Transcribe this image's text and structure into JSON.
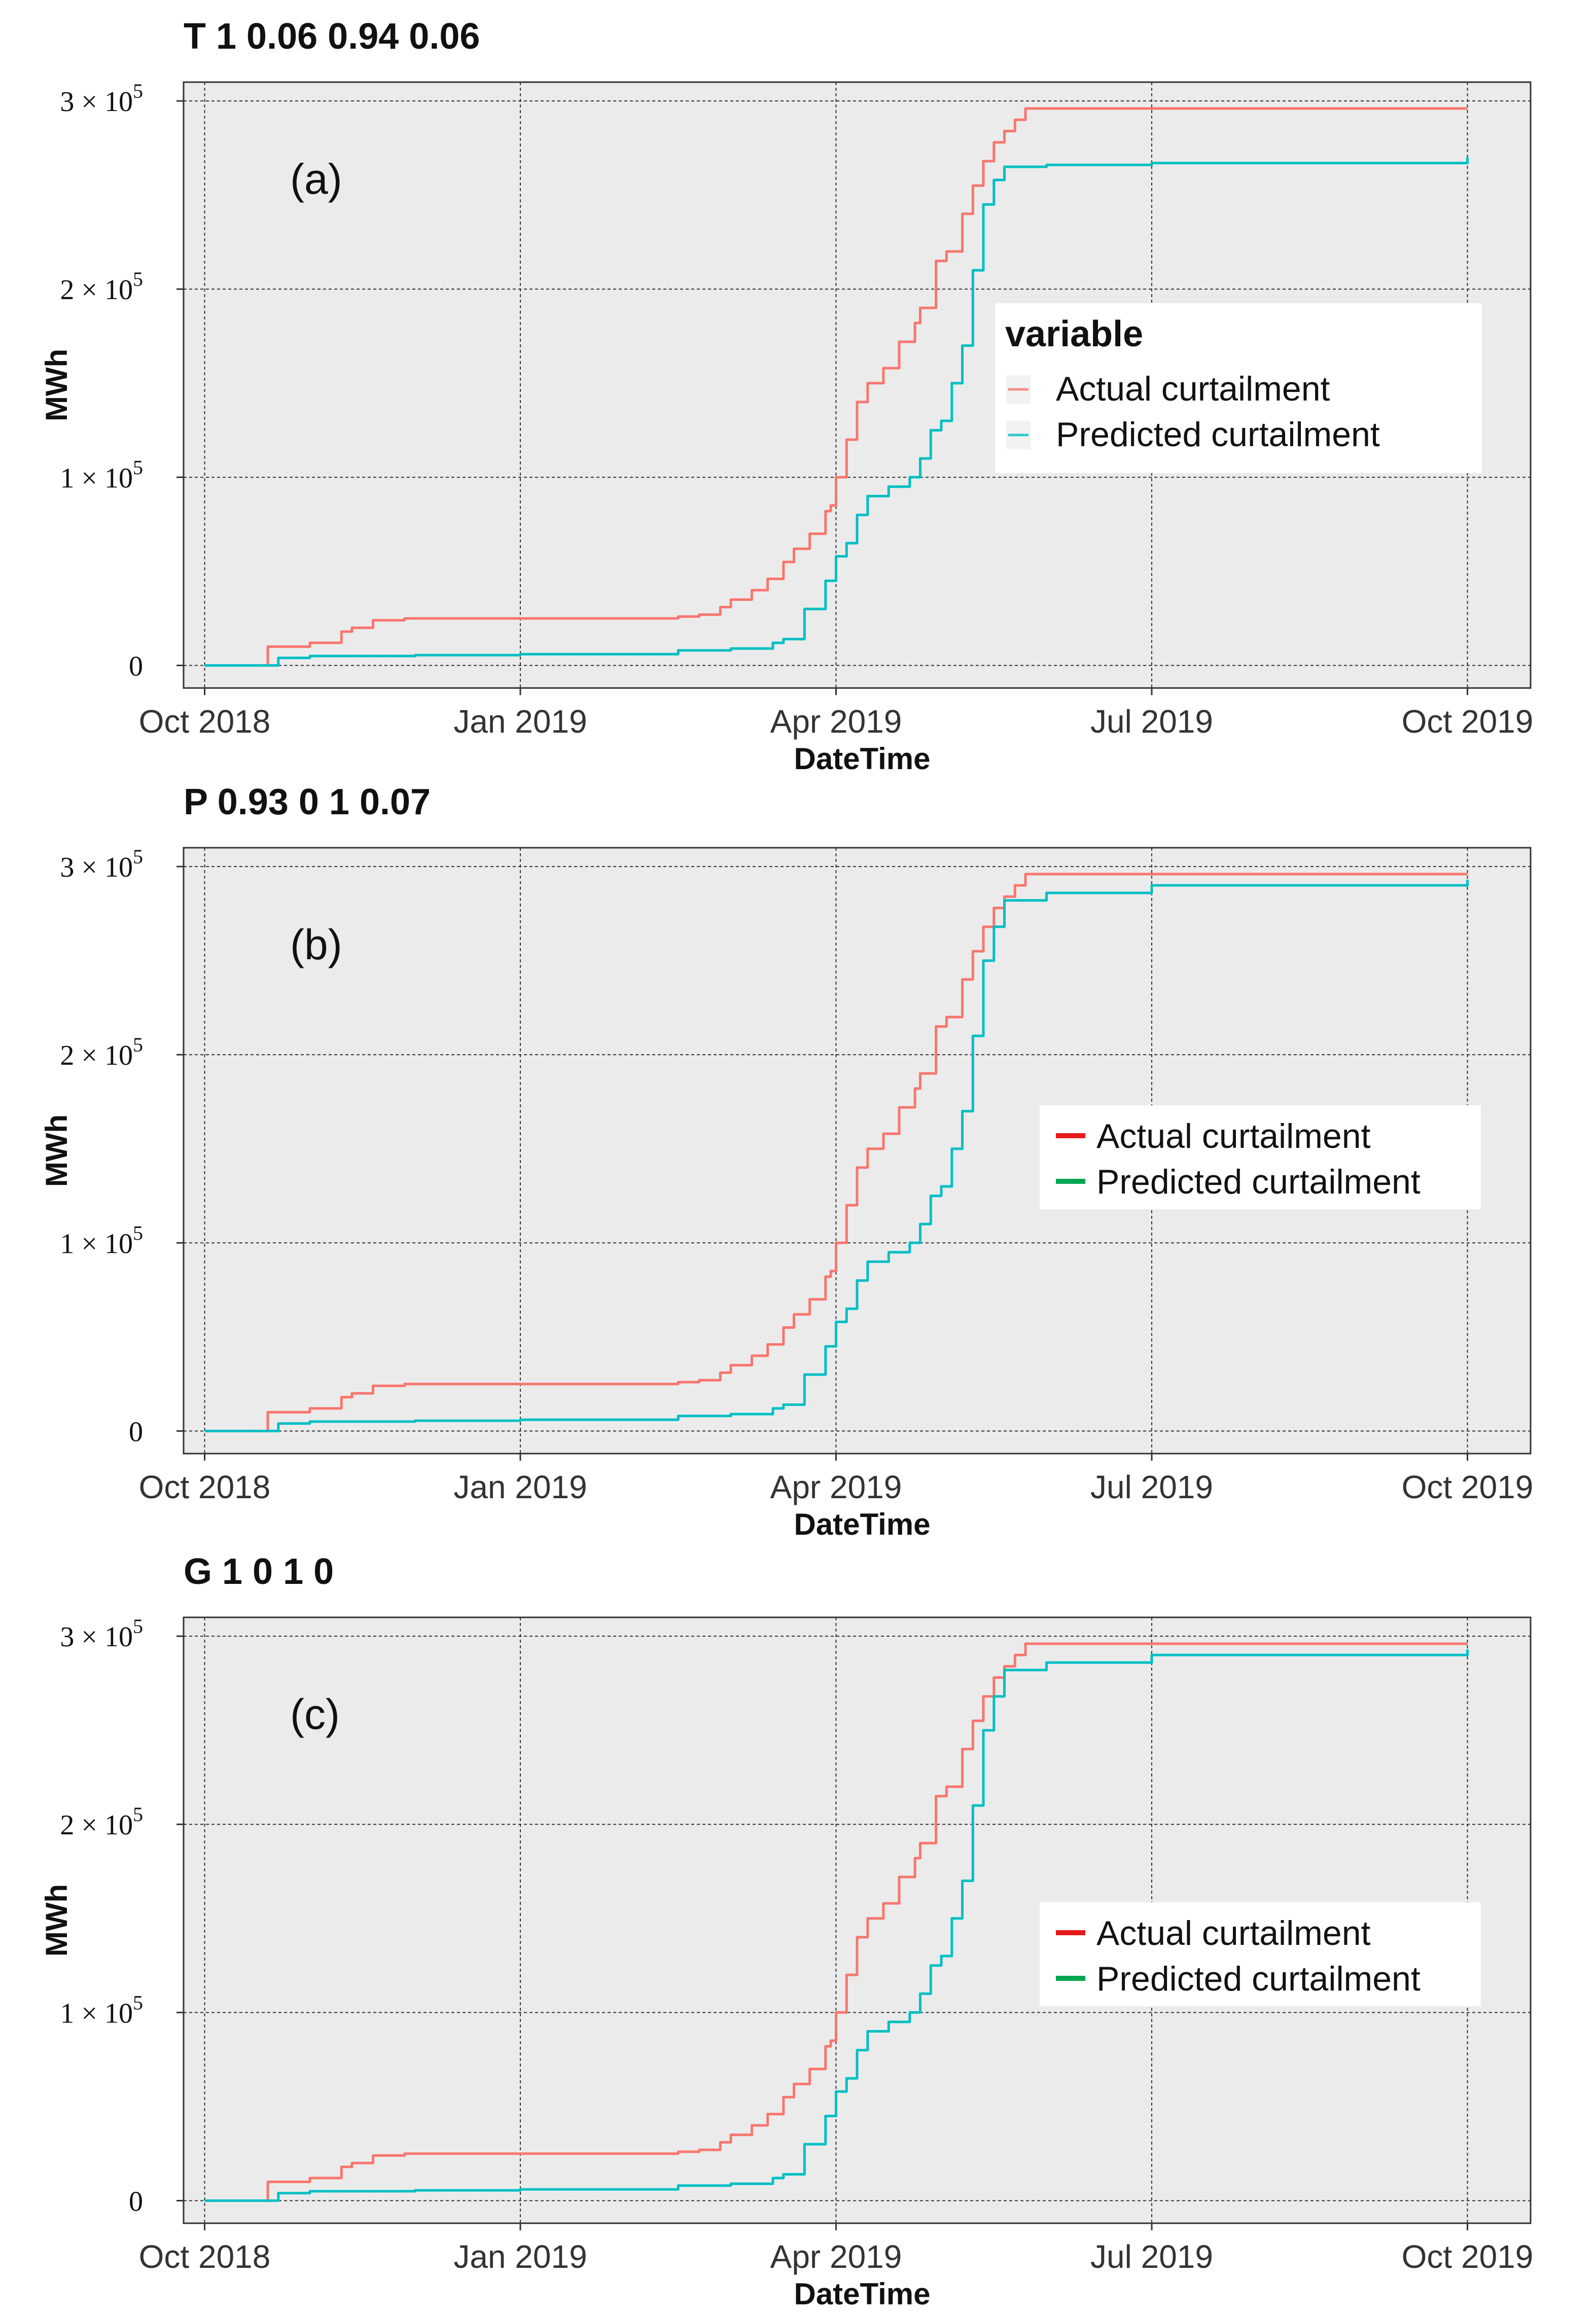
{
  "chart_data": [
    {
      "type": "line",
      "title": "T 1 0.06 0.94 0.06",
      "panel_label": "(a)",
      "xlabel": "DateTime",
      "ylabel": "MWh",
      "x_ticks": [
        "Oct 2018",
        "Jan 2019",
        "Apr 2019",
        "Jul 2019",
        "Oct 2019"
      ],
      "y_ticks": [
        {
          "value": 0,
          "mantissa": "0",
          "exponent": ""
        },
        {
          "value": 100000,
          "mantissa": "1 × 10",
          "exponent": "5"
        },
        {
          "value": 200000,
          "mantissa": "2 × 10",
          "exponent": "5"
        },
        {
          "value": 300000,
          "mantissa": "3 × 10",
          "exponent": "5"
        }
      ],
      "xlim": [
        -0.2,
        12.6
      ],
      "ylim": [
        -12000,
        310000
      ],
      "x_unit": "months since Oct 2018",
      "grid": true,
      "legend": {
        "title": "variable",
        "position": "center-right",
        "style": "faded",
        "entries": [
          "Actual curtailment",
          "Predicted curtailment"
        ]
      },
      "series": [
        {
          "name": "Actual curtailment",
          "color": "#F8766D",
          "x": [
            0,
            0.45,
            0.6,
            1.0,
            1.3,
            1.4,
            1.6,
            1.9,
            3.0,
            4.5,
            4.7,
            4.9,
            5.0,
            5.2,
            5.35,
            5.5,
            5.6,
            5.75,
            5.9,
            5.95,
            6.0,
            6.1,
            6.2,
            6.3,
            6.45,
            6.6,
            6.75,
            6.8,
            6.95,
            7.05,
            7.1,
            7.2,
            7.3,
            7.4,
            7.5,
            7.6,
            7.7,
            7.8,
            9.0,
            12.0
          ],
          "y": [
            0,
            0,
            10000,
            12000,
            18000,
            20000,
            24000,
            25000,
            25000,
            26000,
            27000,
            31000,
            35000,
            40000,
            46000,
            55000,
            62000,
            70000,
            82000,
            85000,
            100000,
            120000,
            140000,
            150000,
            158000,
            172000,
            182000,
            190000,
            215000,
            220000,
            220000,
            240000,
            255000,
            268000,
            278000,
            284000,
            290000,
            296000,
            296000,
            296000
          ]
        },
        {
          "name": "Predicted curtailment",
          "color": "#00BFC4",
          "x": [
            0,
            0.45,
            0.7,
            1.0,
            2.0,
            3.0,
            4.3,
            4.5,
            5.0,
            5.4,
            5.5,
            5.7,
            5.9,
            6.0,
            6.1,
            6.2,
            6.3,
            6.5,
            6.7,
            6.8,
            6.9,
            7.0,
            7.1,
            7.2,
            7.3,
            7.4,
            7.5,
            7.6,
            8.0,
            9.0,
            12.0
          ],
          "y": [
            0,
            0,
            4000,
            5000,
            5500,
            6000,
            6000,
            8000,
            9000,
            12000,
            14000,
            30000,
            45000,
            58000,
            65000,
            80000,
            90000,
            95000,
            100000,
            110000,
            125000,
            130000,
            150000,
            170000,
            210000,
            245000,
            258000,
            265000,
            266000,
            267000,
            270000
          ]
        }
      ]
    },
    {
      "type": "line",
      "title": "P 0.93 0 1 0.07",
      "panel_label": "(b)",
      "xlabel": "DateTime",
      "ylabel": "MWh",
      "x_ticks": [
        "Oct 2018",
        "Jan 2019",
        "Apr 2019",
        "Jul 2019",
        "Oct 2019"
      ],
      "y_ticks": [
        {
          "value": 0,
          "mantissa": "0",
          "exponent": ""
        },
        {
          "value": 100000,
          "mantissa": "1 × 10",
          "exponent": "5"
        },
        {
          "value": 200000,
          "mantissa": "2 × 10",
          "exponent": "5"
        },
        {
          "value": 300000,
          "mantissa": "3 × 10",
          "exponent": "5"
        }
      ],
      "xlim": [
        -0.2,
        12.6
      ],
      "ylim": [
        -12000,
        310000
      ],
      "x_unit": "months since Oct 2018",
      "grid": true,
      "legend": {
        "title": "",
        "position": "center-right",
        "style": "solid",
        "entries": [
          "Actual curtailment",
          "Predicted curtailment"
        ],
        "colors": [
          "#E8191A",
          "#00A651"
        ]
      },
      "series": [
        {
          "name": "Actual curtailment",
          "color": "#F8766D",
          "x": [
            0,
            0.45,
            0.6,
            1.0,
            1.3,
            1.4,
            1.6,
            1.9,
            3.0,
            4.5,
            4.7,
            4.9,
            5.0,
            5.2,
            5.35,
            5.5,
            5.6,
            5.75,
            5.9,
            5.95,
            6.0,
            6.1,
            6.2,
            6.3,
            6.45,
            6.6,
            6.75,
            6.8,
            6.95,
            7.05,
            7.1,
            7.2,
            7.3,
            7.4,
            7.5,
            7.6,
            7.7,
            7.8,
            9.0,
            12.0
          ],
          "y": [
            0,
            0,
            10000,
            12000,
            18000,
            20000,
            24000,
            25000,
            25000,
            26000,
            27000,
            31000,
            35000,
            40000,
            46000,
            55000,
            62000,
            70000,
            82000,
            85000,
            100000,
            120000,
            140000,
            150000,
            158000,
            172000,
            182000,
            190000,
            215000,
            220000,
            220000,
            240000,
            255000,
            268000,
            278000,
            284000,
            290000,
            296000,
            296000,
            296000
          ]
        },
        {
          "name": "Predicted curtailment",
          "color": "#00BFC4",
          "x": [
            0,
            0.45,
            0.7,
            1.0,
            2.0,
            3.0,
            4.3,
            4.5,
            5.0,
            5.4,
            5.5,
            5.7,
            5.9,
            6.0,
            6.1,
            6.2,
            6.3,
            6.5,
            6.7,
            6.8,
            6.9,
            7.0,
            7.1,
            7.2,
            7.3,
            7.4,
            7.5,
            7.6,
            8.0,
            9.0,
            12.0
          ],
          "y": [
            0,
            0,
            4000,
            5000,
            5500,
            6000,
            6000,
            8000,
            9000,
            12000,
            14000,
            30000,
            45000,
            58000,
            65000,
            80000,
            90000,
            95000,
            100000,
            110000,
            125000,
            130000,
            150000,
            170000,
            210000,
            250000,
            268000,
            282000,
            286000,
            290000,
            293000
          ]
        }
      ]
    },
    {
      "type": "line",
      "title": "G 1 0 1 0",
      "panel_label": "(c)",
      "xlabel": "DateTime",
      "ylabel": "MWh",
      "x_ticks": [
        "Oct 2018",
        "Jan 2019",
        "Apr 2019",
        "Jul 2019",
        "Oct 2019"
      ],
      "y_ticks": [
        {
          "value": 0,
          "mantissa": "0",
          "exponent": ""
        },
        {
          "value": 100000,
          "mantissa": "1 × 10",
          "exponent": "5"
        },
        {
          "value": 200000,
          "mantissa": "2 × 10",
          "exponent": "5"
        },
        {
          "value": 300000,
          "mantissa": "3 × 10",
          "exponent": "5"
        }
      ],
      "xlim": [
        -0.2,
        12.6
      ],
      "ylim": [
        -12000,
        310000
      ],
      "x_unit": "months since Oct 2018",
      "grid": true,
      "legend": {
        "title": "",
        "position": "center-right",
        "style": "solid",
        "entries": [
          "Actual curtailment",
          "Predicted curtailment"
        ],
        "colors": [
          "#E8191A",
          "#00A651"
        ]
      },
      "series": [
        {
          "name": "Actual curtailment",
          "color": "#F8766D",
          "x": [
            0,
            0.45,
            0.6,
            1.0,
            1.3,
            1.4,
            1.6,
            1.9,
            3.0,
            4.5,
            4.7,
            4.9,
            5.0,
            5.2,
            5.35,
            5.5,
            5.6,
            5.75,
            5.9,
            5.95,
            6.0,
            6.1,
            6.2,
            6.3,
            6.45,
            6.6,
            6.75,
            6.8,
            6.95,
            7.05,
            7.1,
            7.2,
            7.3,
            7.4,
            7.5,
            7.6,
            7.7,
            7.8,
            9.0,
            12.0
          ],
          "y": [
            0,
            0,
            10000,
            12000,
            18000,
            20000,
            24000,
            25000,
            25000,
            26000,
            27000,
            31000,
            35000,
            40000,
            46000,
            55000,
            62000,
            70000,
            82000,
            85000,
            100000,
            120000,
            140000,
            150000,
            158000,
            172000,
            182000,
            190000,
            215000,
            220000,
            220000,
            240000,
            255000,
            268000,
            278000,
            284000,
            290000,
            296000,
            296000,
            296000
          ]
        },
        {
          "name": "Predicted curtailment",
          "color": "#00BFC4",
          "x": [
            0,
            0.45,
            0.7,
            1.0,
            2.0,
            3.0,
            4.3,
            4.5,
            5.0,
            5.4,
            5.5,
            5.7,
            5.9,
            6.0,
            6.1,
            6.2,
            6.3,
            6.5,
            6.7,
            6.8,
            6.9,
            7.0,
            7.1,
            7.2,
            7.3,
            7.4,
            7.5,
            7.6,
            8.0,
            9.0,
            12.0
          ],
          "y": [
            0,
            0,
            4000,
            5000,
            5500,
            6000,
            6000,
            8000,
            9000,
            12000,
            14000,
            30000,
            45000,
            58000,
            65000,
            80000,
            90000,
            95000,
            100000,
            110000,
            125000,
            130000,
            150000,
            170000,
            210000,
            250000,
            268000,
            282000,
            286000,
            290000,
            293000
          ]
        }
      ]
    }
  ]
}
